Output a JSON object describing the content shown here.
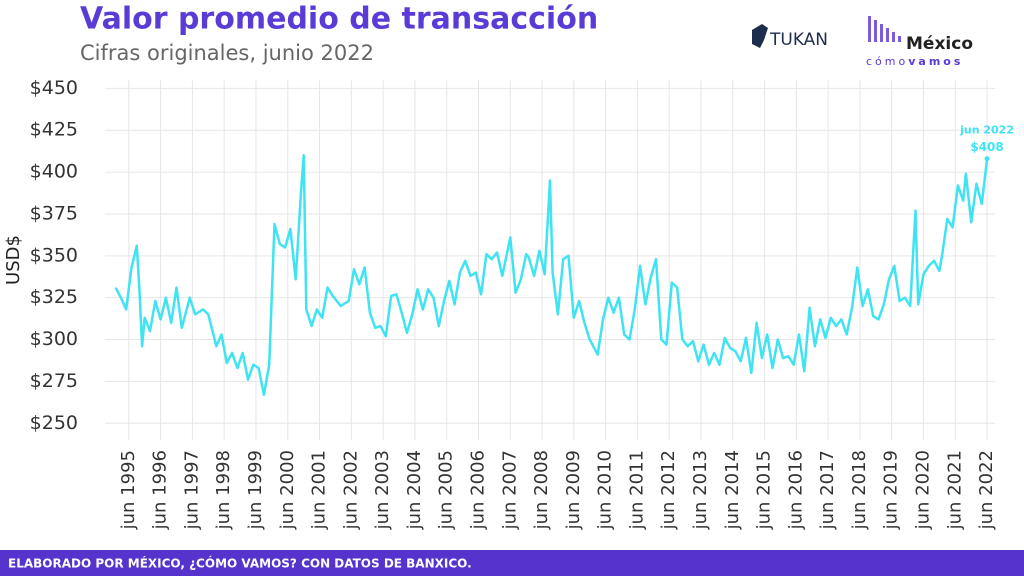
{
  "chart_data": {
    "type": "line",
    "title": "Valor promedio de transacción",
    "subtitle": "Cifras originales, junio 2022",
    "y_label": "USD$",
    "footer": "ELABORADO POR MÉXICO, ¿CÓMO VAMOS? CON DATOS DE BANXICO.",
    "logos": {
      "tukan": "TUKAN",
      "mexico": "México",
      "como": "cómo",
      "vamos": "vamos"
    },
    "annotation": {
      "label": "jun 2022",
      "value_label": "$408"
    },
    "grid": true,
    "xlim": [
      "1994-09",
      "2022-09"
    ],
    "ylim": [
      240,
      455
    ],
    "yticks": [
      {
        "value": 250,
        "label": "$250"
      },
      {
        "value": 275,
        "label": "$275"
      },
      {
        "value": 300,
        "label": "$300"
      },
      {
        "value": 325,
        "label": "$325"
      },
      {
        "value": 350,
        "label": "$350"
      },
      {
        "value": 375,
        "label": "$375"
      },
      {
        "value": 400,
        "label": "$400"
      },
      {
        "value": 425,
        "label": "$425"
      },
      {
        "value": 450,
        "label": "$450"
      }
    ],
    "xticks": [
      {
        "value": "1995-06",
        "label": "jun 1995"
      },
      {
        "value": "1996-06",
        "label": "jun 1996"
      },
      {
        "value": "1997-06",
        "label": "jun 1997"
      },
      {
        "value": "1998-06",
        "label": "jun 1998"
      },
      {
        "value": "1999-06",
        "label": "jun 1999"
      },
      {
        "value": "2000-06",
        "label": "jun 2000"
      },
      {
        "value": "2001-06",
        "label": "jun 2001"
      },
      {
        "value": "2002-06",
        "label": "jun 2002"
      },
      {
        "value": "2003-06",
        "label": "jun 2003"
      },
      {
        "value": "2004-06",
        "label": "jun 2004"
      },
      {
        "value": "2005-06",
        "label": "jun 2005"
      },
      {
        "value": "2006-06",
        "label": "jun 2006"
      },
      {
        "value": "2007-06",
        "label": "jun 2007"
      },
      {
        "value": "2008-06",
        "label": "jun 2008"
      },
      {
        "value": "2009-06",
        "label": "jun 2009"
      },
      {
        "value": "2010-06",
        "label": "jun 2010"
      },
      {
        "value": "2011-06",
        "label": "jun 2011"
      },
      {
        "value": "2012-06",
        "label": "jun 2012"
      },
      {
        "value": "2013-06",
        "label": "jun 2013"
      },
      {
        "value": "2014-06",
        "label": "jun 2014"
      },
      {
        "value": "2015-06",
        "label": "jun 2015"
      },
      {
        "value": "2016-06",
        "label": "jun 2016"
      },
      {
        "value": "2017-06",
        "label": "jun 2017"
      },
      {
        "value": "2018-06",
        "label": "jun 2018"
      },
      {
        "value": "2019-06",
        "label": "jun 2019"
      },
      {
        "value": "2020-06",
        "label": "jun 2020"
      },
      {
        "value": "2021-06",
        "label": "jun 2021"
      },
      {
        "value": "2022-06",
        "label": "jun 2022"
      }
    ],
    "x": [
      "1995-01",
      "1995-03",
      "1995-05",
      "1995-07",
      "1995-09",
      "1995-10",
      "1995-11",
      "1995-12",
      "1996-02",
      "1996-04",
      "1996-06",
      "1996-08",
      "1996-10",
      "1996-12",
      "1997-02",
      "1997-05",
      "1997-07",
      "1997-10",
      "1997-12",
      "1998-03",
      "1998-05",
      "1998-07",
      "1998-09",
      "1998-11",
      "1999-01",
      "1999-03",
      "1999-05",
      "1999-07",
      "1999-09",
      "1999-11",
      "2000-01",
      "2000-03",
      "2000-05",
      "2000-07",
      "2000-09",
      "2000-11",
      "2000-12",
      "2001-01",
      "2001-03",
      "2001-05",
      "2001-07",
      "2001-09",
      "2001-11",
      "2002-02",
      "2002-05",
      "2002-07",
      "2002-09",
      "2002-11",
      "2003-01",
      "2003-03",
      "2003-05",
      "2003-07",
      "2003-09",
      "2003-11",
      "2004-01",
      "2004-03",
      "2004-05",
      "2004-07",
      "2004-09",
      "2004-11",
      "2005-01",
      "2005-03",
      "2005-05",
      "2005-07",
      "2005-09",
      "2005-11",
      "2006-01",
      "2006-03",
      "2006-05",
      "2006-07",
      "2006-09",
      "2006-11",
      "2007-01",
      "2007-03",
      "2007-06",
      "2007-08",
      "2007-10",
      "2007-12",
      "2008-01",
      "2008-03",
      "2008-05",
      "2008-07",
      "2008-09",
      "2008-10",
      "2008-12",
      "2009-02",
      "2009-04",
      "2009-06",
      "2009-08",
      "2009-10",
      "2009-12",
      "2010-03",
      "2010-05",
      "2010-07",
      "2010-09",
      "2010-11",
      "2011-01",
      "2011-03",
      "2011-05",
      "2011-07",
      "2011-09",
      "2011-11",
      "2012-01",
      "2012-03",
      "2012-05",
      "2012-07",
      "2012-09",
      "2012-11",
      "2013-01",
      "2013-03",
      "2013-05",
      "2013-07",
      "2013-09",
      "2013-11",
      "2014-01",
      "2014-03",
      "2014-05",
      "2014-07",
      "2014-09",
      "2014-11",
      "2015-01",
      "2015-03",
      "2015-05",
      "2015-07",
      "2015-09",
      "2015-11",
      "2016-01",
      "2016-03",
      "2016-05",
      "2016-07",
      "2016-09",
      "2016-11",
      "2017-01",
      "2017-03",
      "2017-05",
      "2017-07",
      "2017-09",
      "2017-11",
      "2018-01",
      "2018-03",
      "2018-05",
      "2018-07",
      "2018-09",
      "2018-11",
      "2019-01",
      "2019-03",
      "2019-05",
      "2019-07",
      "2019-09",
      "2019-11",
      "2020-01",
      "2020-03",
      "2020-04",
      "2020-06",
      "2020-08",
      "2020-10",
      "2020-12",
      "2021-01",
      "2021-03",
      "2021-05",
      "2021-07",
      "2021-09",
      "2021-10",
      "2021-12",
      "2022-02",
      "2022-04",
      "2022-06"
    ],
    "series": [
      {
        "name": "Valor promedio de transacción",
        "color": "#3fe3f2",
        "values": [
          331,
          325,
          318,
          343,
          356,
          330,
          296,
          313,
          305,
          323,
          312,
          325,
          310,
          331,
          307,
          325,
          315,
          318,
          315,
          296,
          303,
          286,
          292,
          283,
          292,
          276,
          285,
          283,
          267,
          285,
          369,
          357,
          355,
          366,
          336,
          388,
          410,
          318,
          308,
          318,
          313,
          331,
          326,
          320,
          323,
          342,
          333,
          343,
          316,
          307,
          308,
          302,
          326,
          327,
          316,
          304,
          315,
          330,
          318,
          330,
          325,
          308,
          323,
          335,
          321,
          340,
          347,
          338,
          340,
          327,
          351,
          348,
          352,
          338,
          361,
          328,
          336,
          351,
          349,
          338,
          353,
          339,
          395,
          340,
          315,
          348,
          350,
          313,
          323,
          310,
          300,
          291,
          312,
          325,
          316,
          325,
          303,
          300,
          318,
          344,
          321,
          337,
          348,
          300,
          297,
          334,
          331,
          300,
          296,
          299,
          287,
          297,
          285,
          292,
          285,
          301,
          295,
          293,
          287,
          301,
          280,
          310,
          289,
          303,
          283,
          300,
          289,
          290,
          285,
          303,
          281,
          319,
          296,
          312,
          301,
          313,
          308,
          312,
          303,
          319,
          343,
          320,
          330,
          314,
          312,
          321,
          336,
          344,
          323,
          325,
          320,
          377,
          321,
          339,
          344,
          347,
          341,
          350,
          372,
          367,
          392,
          383,
          399,
          370,
          393,
          381,
          408
        ]
      }
    ]
  }
}
